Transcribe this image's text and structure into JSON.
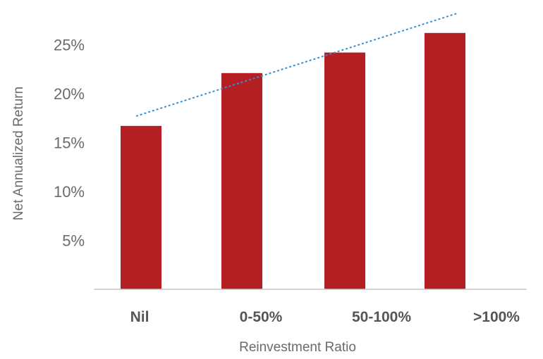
{
  "chart_data": {
    "type": "bar",
    "categories": [
      "Nil",
      "0-50%",
      "50-100%",
      ">100%"
    ],
    "values": [
      16.7,
      22.1,
      24.2,
      26.2
    ],
    "yticks": [
      {
        "value": 5,
        "label": "5%"
      },
      {
        "value": 10,
        "label": "10%"
      },
      {
        "value": 15,
        "label": "15%"
      },
      {
        "value": 20,
        "label": "20%"
      },
      {
        "value": 25,
        "label": "25%"
      }
    ],
    "ylim": [
      0,
      28
    ],
    "xlabel": "Reinvestment Ratio",
    "ylabel": "Net Annualized Return",
    "trendline": {
      "start": 17.7,
      "end": 28.2
    },
    "grid": false,
    "colors": {
      "bar": "#b41f24",
      "trendline": "#3a8fd0",
      "axis": "#c8c8c8"
    }
  }
}
